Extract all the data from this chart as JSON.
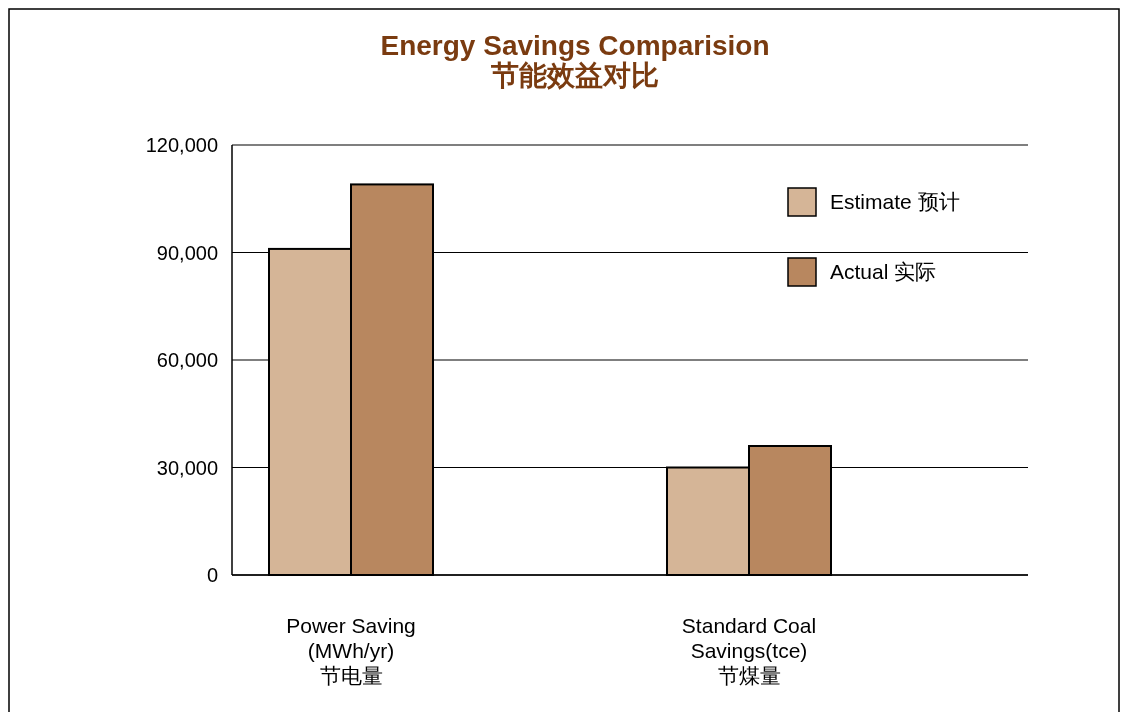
{
  "chart_data": {
    "type": "bar",
    "title": "Energy Savings Comparision\n节能效益对比",
    "categories": [
      "Power Saving\n(MWh/yr)\n节电量",
      "Standard Coal\nSavings(tce)\n节煤量"
    ],
    "series": [
      {
        "name": "Estimate 预计",
        "color": "#d5b597",
        "values": [
          91000,
          30000
        ]
      },
      {
        "name": "Actual 实际",
        "color": "#b8875f",
        "values": [
          109000,
          36000
        ]
      }
    ],
    "ylim": [
      0,
      120000
    ],
    "yticks": [
      {
        "value": 0,
        "label": "0"
      },
      {
        "value": 30000,
        "label": "30,000"
      },
      {
        "value": 60000,
        "label": "60,000"
      },
      {
        "value": 90000,
        "label": "90,000"
      },
      {
        "value": 120000,
        "label": "120,000"
      }
    ],
    "grid": "y",
    "legend": "top right"
  }
}
